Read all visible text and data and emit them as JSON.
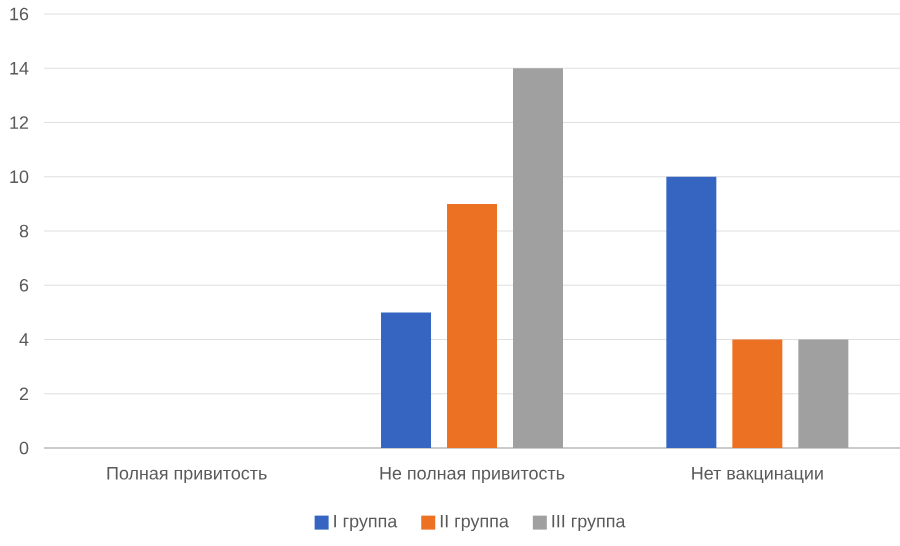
{
  "chart_data": {
    "type": "bar",
    "categories": [
      "Полная привитость",
      "Не полная привитость",
      "Нет вакцинации"
    ],
    "series": [
      {
        "name": "I группа",
        "color": "#3565c0",
        "values": [
          0,
          5,
          10
        ]
      },
      {
        "name": "II группа",
        "color": "#ed7123",
        "values": [
          0,
          9,
          4
        ]
      },
      {
        "name": "III группа",
        "color": "#a0a0a0",
        "values": [
          0,
          14,
          4
        ]
      }
    ],
    "ylim": [
      0,
      16
    ],
    "yticks": [
      0,
      2,
      4,
      6,
      8,
      10,
      12,
      14,
      16
    ],
    "grid": "y",
    "legend": "bottom"
  }
}
